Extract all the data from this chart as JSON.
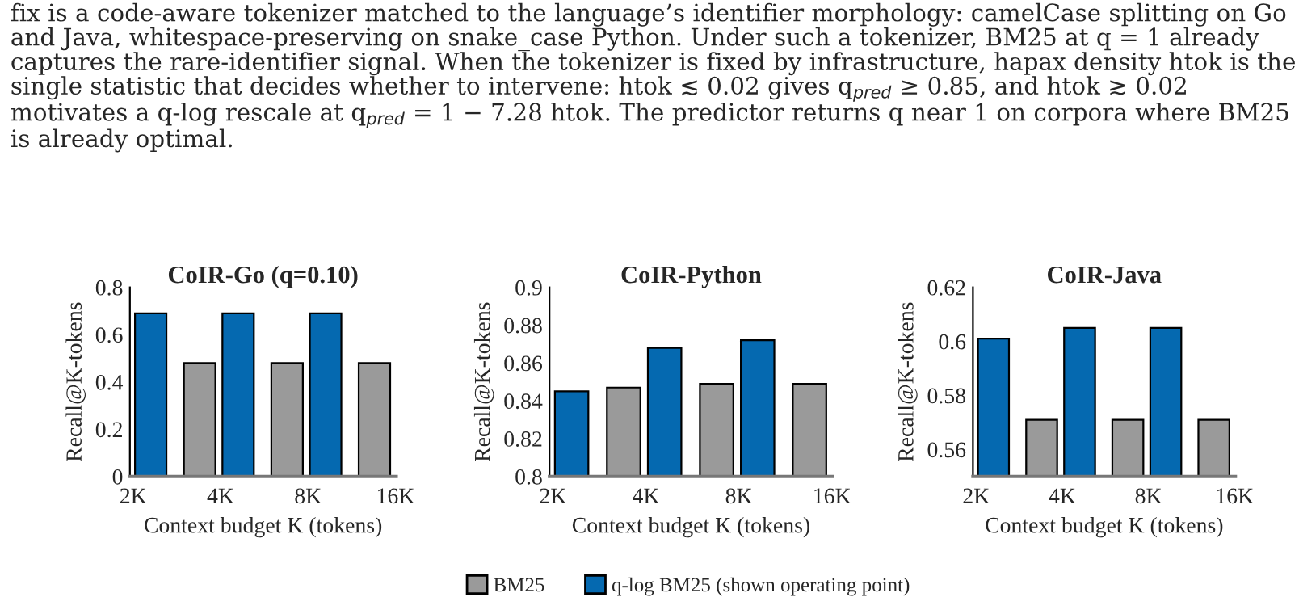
{
  "chart_data": [
    {
      "type": "bar",
      "title": "CoIR-Go (q=0.10)",
      "xlabel": "Context budget K (tokens)",
      "ylabel": "Recall@K-tokens",
      "log": "x",
      "legend": "bottom",
      "annotations": [
        "fix is a code-aware tokenizer matched to the language’s identifier morphology: camelCase splitting on Go and Java, whitespace-preserving on snake_case Python. Under such a tokenizer, BM25 at q = 1 already captures the rare-identifier signal. When the tokenizer is fixed by infrastructure, hapax density htok is the single statistic that decides whether to intervene: htok ≲ 0.02 gives q$_{pred}$ ≥ 0.85, and htok ≳ 0.02 motivates a q-log rescale at q$_{pred}$ = 1 − 7.28 htok. The predictor returns q near 1 on corpora where BM25 is already optimal."
      ],
      "xlim": [
        1950,
        16100
      ],
      "xticks": [
        {
          "value": 2000,
          "label": "2K"
        },
        {
          "value": 4000,
          "label": "4K"
        },
        {
          "value": 8000,
          "label": "8K"
        },
        {
          "value": 16000,
          "label": "16K"
        }
      ],
      "ylim": [
        0,
        0.8
      ],
      "yticks": [
        0,
        0.2,
        0.4,
        0.6,
        0.8
      ],
      "series": [
        {
          "name": "q-log BM25 (shown operating point)",
          "color": "#0569b0",
          "x": [
            2300,
            4600,
            9200
          ],
          "values": [
            0.69,
            0.69,
            0.69
          ]
        },
        {
          "name": "BM25",
          "color": "#9a9a9a",
          "x": [
            3390,
            6780,
            13550
          ],
          "values": [
            0.48,
            0.48,
            0.48
          ]
        }
      ]
    },
    {
      "type": "bar",
      "title": "CoIR-Python",
      "xlabel": "Context budget K (tokens)",
      "ylabel": "Recall@K-tokens",
      "log": "x",
      "xlim": [
        1950,
        16100
      ],
      "xticks": [
        {
          "value": 2000,
          "label": "2K"
        },
        {
          "value": 4000,
          "label": "4K"
        },
        {
          "value": 8000,
          "label": "8K"
        },
        {
          "value": 16000,
          "label": "16K"
        }
      ],
      "ylim": [
        0.8,
        0.9
      ],
      "yticks": [
        0.8,
        0.82,
        0.84,
        0.86,
        0.88,
        0.9
      ],
      "series": [
        {
          "name": "q-log BM25 (shown operating point)",
          "color": "#0569b0",
          "x": [
            2300,
            4600,
            9200
          ],
          "values": [
            0.845,
            0.868,
            0.872
          ]
        },
        {
          "name": "BM25",
          "color": "#9a9a9a",
          "x": [
            3390,
            6780,
            13550
          ],
          "values": [
            0.847,
            0.849,
            0.849
          ]
        }
      ]
    },
    {
      "type": "bar",
      "title": "CoIR-Java",
      "xlabel": "Context budget K (tokens)",
      "ylabel": "Recall@K-tokens",
      "log": "x",
      "xlim": [
        1950,
        16100
      ],
      "xticks": [
        {
          "value": 2000,
          "label": "2K"
        },
        {
          "value": 4000,
          "label": "4K"
        },
        {
          "value": 8000,
          "label": "8K"
        },
        {
          "value": 16000,
          "label": "16K"
        }
      ],
      "ylim": [
        0.55,
        0.62
      ],
      "yticks": [
        0.56,
        0.58,
        0.6,
        0.62
      ],
      "series": [
        {
          "name": "q-log BM25 (shown operating point)",
          "color": "#0569b0",
          "x": [
            2300,
            4600,
            9200
          ],
          "values": [
            0.601,
            0.605,
            0.605
          ]
        },
        {
          "name": "BM25",
          "color": "#9a9a9a",
          "x": [
            3390,
            6780,
            13550
          ],
          "values": [
            0.571,
            0.571,
            0.571
          ]
        }
      ]
    }
  ]
}
